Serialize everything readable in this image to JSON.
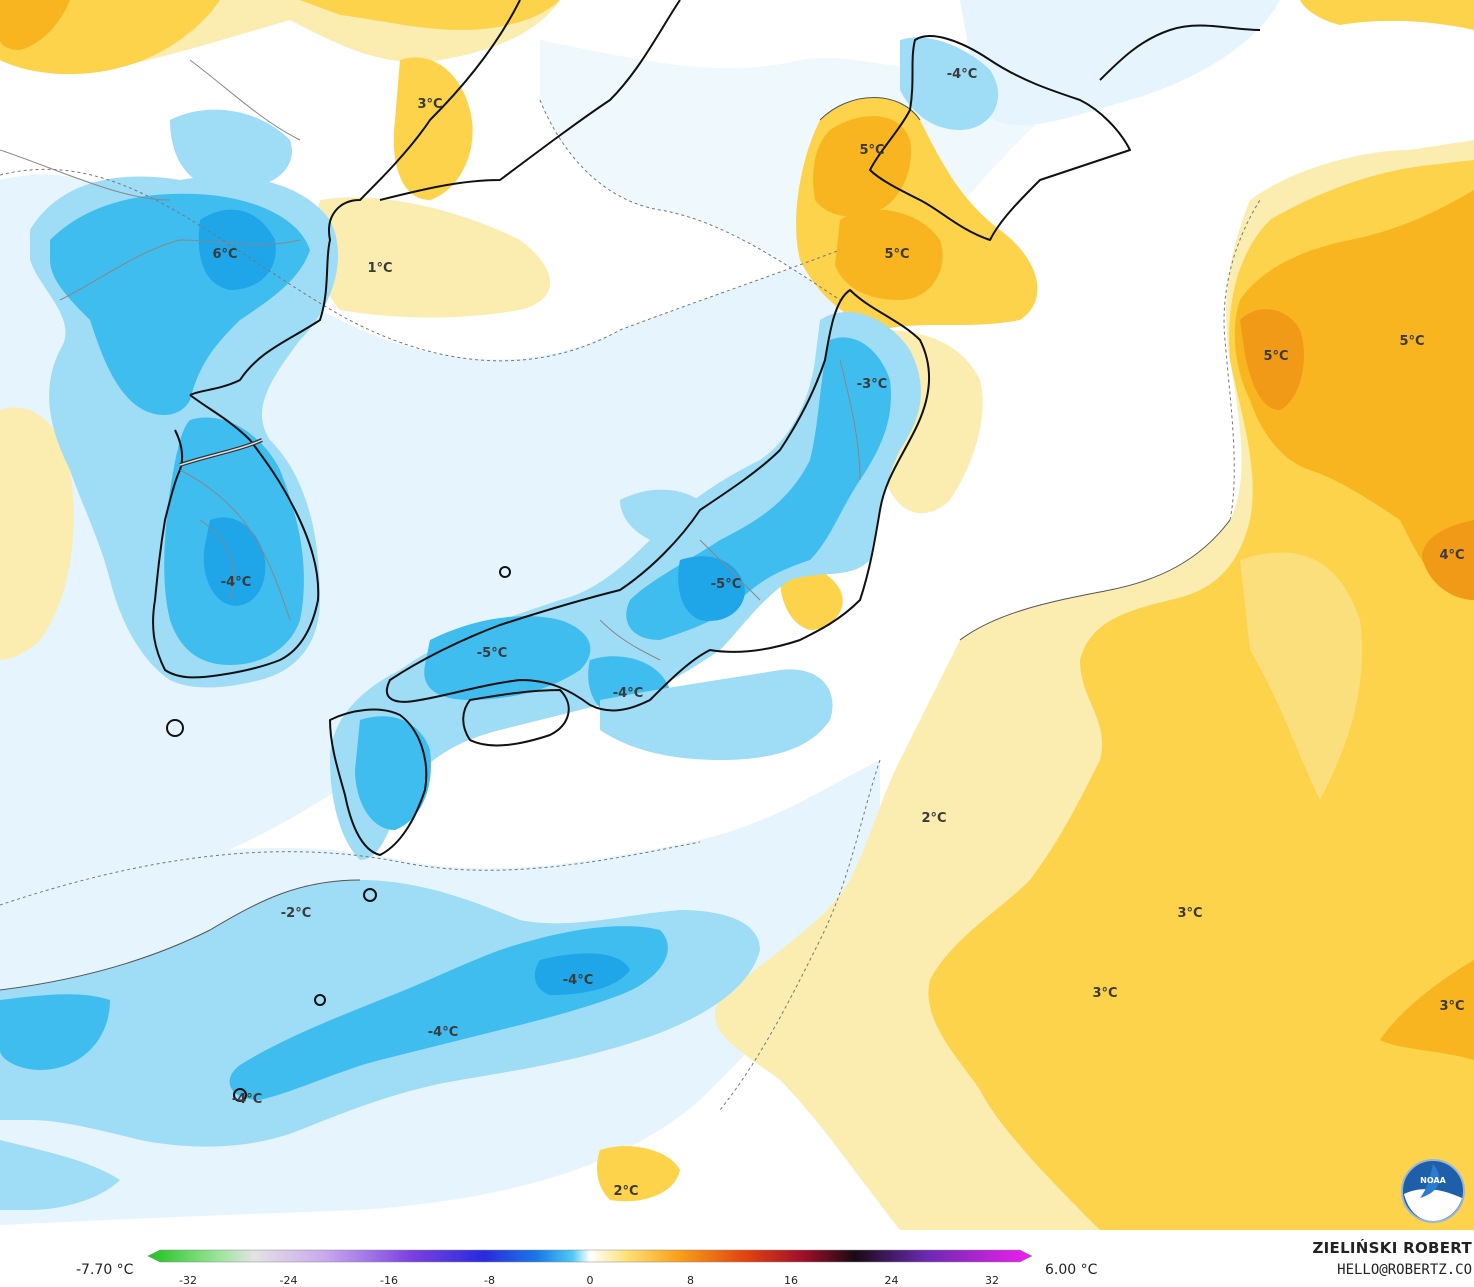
{
  "map": {
    "labels": [
      {
        "text": "3°C",
        "pos": "far-east-russia-north"
      },
      {
        "text": "1°C",
        "pos": "liaoning"
      },
      {
        "text": "6°C",
        "pos": "north-korea"
      },
      {
        "text": "-4°C",
        "pos": "south-korea"
      },
      {
        "text": "5°C",
        "pos": "hokkaido-southwest"
      },
      {
        "text": "5°C",
        "pos": "hokkaido-south"
      },
      {
        "text": "-4°C",
        "pos": "hokkaido-north"
      },
      {
        "text": "-3°C",
        "pos": "tohoku"
      },
      {
        "text": "-5°C",
        "pos": "chubu"
      },
      {
        "text": "-5°C",
        "pos": "chugoku"
      },
      {
        "text": "-4°C",
        "pos": "kinki"
      },
      {
        "text": "5°C",
        "pos": "pacific-north-1"
      },
      {
        "text": "5°C",
        "pos": "pacific-north-2"
      },
      {
        "text": "4°C",
        "pos": "pacific-east"
      },
      {
        "text": "2°C",
        "pos": "pacific-center"
      },
      {
        "text": "3°C",
        "pos": "pacific-south-1"
      },
      {
        "text": "3°C",
        "pos": "pacific-south-2"
      },
      {
        "text": "3°C",
        "pos": "pacific-southeast"
      },
      {
        "text": "-2°C",
        "pos": "east-china-sea"
      },
      {
        "text": "-4°C",
        "pos": "ryukyu-north"
      },
      {
        "text": "-4°C",
        "pos": "ryukyu-mid"
      },
      {
        "text": "-4°C",
        "pos": "okinawa"
      },
      {
        "text": "2°C",
        "pos": "philippine-sea"
      }
    ],
    "colors": {
      "warm_light": "#fbecb0",
      "warm_mid": "#fcd34a",
      "warm_strong": "#f8b520",
      "warm_deep": "#f09a18",
      "cool_light": "#e6f5fd",
      "cool_mid": "#9fdcf5",
      "cool_strong": "#3fbdef",
      "cool_deep": "#1ea6e9",
      "land_line": "#111111",
      "border_line": "#888888"
    }
  },
  "legend": {
    "min_value": "-7.70 °C",
    "max_value": "6.00 °C",
    "ticks": [
      "-32",
      "-24",
      "-16",
      "-8",
      "0",
      "8",
      "16",
      "24",
      "32"
    ]
  },
  "credits": {
    "author": "ZIELIŃSKI ROBERT",
    "email": "HELLO@ROBERTZ.CO",
    "logo_text": "NOAA"
  }
}
